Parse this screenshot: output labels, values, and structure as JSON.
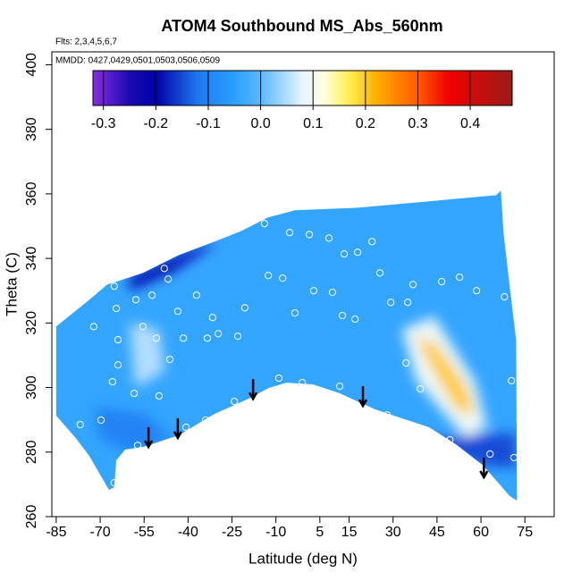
{
  "chart_data": {
    "type": "contour",
    "title": "ATOM4 Southbound MS_Abs_560nm",
    "flights_note": "Flts: 2,3,4,5,6,7",
    "dates_note": "MMDD: 0427,0429,0501,0503,0506,0509",
    "xlabel": "Latitude (deg N)",
    "ylabel": "Theta (C)",
    "xlim": [
      -86.5,
      85
    ],
    "ylim": [
      260,
      404
    ],
    "xticks": [
      -85,
      -70,
      -55,
      -40,
      -25,
      -10,
      5,
      15,
      30,
      45,
      60,
      75
    ],
    "yticks": [
      260,
      280,
      300,
      320,
      340,
      360,
      380,
      400
    ],
    "colorbar": {
      "lim": [
        -0.32,
        0.48
      ],
      "ticks": [
        -0.3,
        -0.2,
        -0.1,
        {
          "value": 0,
          "label": "0.0"
        },
        0.1,
        0.2,
        0.3,
        0.4
      ],
      "stops": [
        {
          "value": -0.32,
          "color": "#8a2be2"
        },
        {
          "value": -0.25,
          "color": "#1a0ab0"
        },
        {
          "value": -0.2,
          "color": "#0000a8"
        },
        {
          "value": -0.12,
          "color": "#1e78f0"
        },
        {
          "value": -0.05,
          "color": "#2aa0ff"
        },
        {
          "value": 0.0,
          "color": "#5ab8ff"
        },
        {
          "value": 0.08,
          "color": "#e6f4ff"
        },
        {
          "value": 0.12,
          "color": "#ffffe0"
        },
        {
          "value": 0.17,
          "color": "#ffee50"
        },
        {
          "value": 0.22,
          "color": "#ffb000"
        },
        {
          "value": 0.3,
          "color": "#ff5a00"
        },
        {
          "value": 0.36,
          "color": "#f00000"
        },
        {
          "value": 0.48,
          "color": "#9a1c1c"
        }
      ]
    },
    "field": {
      "base_value": -0.04,
      "boundary": {
        "lat": [
          -85,
          -73.7,
          -67.6,
          -55.4,
          -43.2,
          -31.0,
          -21.8,
          -12.7,
          -3.5,
          17.9,
          42.3,
          65.2,
          66.8,
          67.7,
          69.8,
          72.0,
          72.3,
          69.8,
          60.6,
          51.5,
          42.3,
          33.2,
          24.0,
          11.8,
          2.6,
          -6.5,
          -12.6,
          -18.7,
          -31.0,
          -43.2,
          -55.4,
          -61.5,
          -64.5,
          -65.2,
          -67.0,
          -73.7,
          -78.3,
          -85
        ],
        "theta": [
          318.9,
          327.2,
          331.9,
          335.5,
          341.0,
          345.2,
          348.5,
          352.7,
          354.9,
          355.7,
          357.7,
          359.6,
          361.0,
          348.0,
          331.4,
          314.8,
          265.0,
          266.4,
          276.0,
          282.4,
          287.7,
          290.4,
          293.2,
          298.2,
          301.0,
          301.5,
          299.8,
          296.8,
          291.8,
          285.2,
          281.6,
          280.8,
          277.4,
          269.1,
          268.3,
          278.8,
          284.3,
          291.3
        ]
      },
      "patches": [
        {
          "value": 0.09,
          "lat": [
            33,
            44,
            58,
            62,
            55,
            38
          ],
          "theta": [
            318,
            322,
            302,
            288,
            284,
            302
          ]
        },
        {
          "value": 0.2,
          "lat": [
            38,
            45,
            55,
            58,
            52,
            42
          ],
          "theta": [
            316,
            313,
            300,
            292,
            293,
            308
          ]
        },
        {
          "value": -0.2,
          "lat": [
            -60,
            -38,
            -30,
            -45,
            -60
          ],
          "theta": [
            334,
            343,
            345,
            336,
            330
          ]
        },
        {
          "value": -0.15,
          "lat": [
            38,
            72,
            72,
            60,
            45
          ],
          "theta": [
            284,
            286,
            275,
            276,
            281
          ]
        },
        {
          "value": 0.05,
          "lat": [
            -60,
            -50,
            -48,
            -58
          ],
          "theta": [
            320,
            318,
            305,
            300
          ]
        },
        {
          "value": -0.1,
          "lat": [
            -72,
            -55,
            -45,
            -60,
            -70
          ],
          "theta": [
            294,
            292,
            284,
            280,
            284
          ]
        }
      ]
    },
    "points": {
      "color": "#ffffff",
      "lat": [
        -13.9,
        -5.3,
        1.4,
        8.1,
        13.3,
        17.9,
        22.8,
        -12.6,
        -7.7,
        -3.5,
        2.9,
        9.3,
        12.7,
        17.0,
        25.5,
        29.2,
        36.8,
        46.6,
        52.7,
        58.5,
        68.0,
        35.0,
        34.4,
        39.3,
        28.0,
        36.2,
        49.4,
        63.1,
        71.3,
        70.4,
        -20.6,
        -23.0,
        -31.6,
        -29.7,
        -37.1,
        -43.5,
        -46.8,
        -48.1,
        -52.3,
        -57.8,
        -65.2,
        -64.5,
        -63.9,
        -63.9,
        -65.8,
        -58.4,
        -49.9,
        -55.4,
        -50.8,
        -41.6,
        -33.4,
        -46.2,
        -72.2,
        -76.8,
        -69.7,
        -57.2,
        -40.7,
        -34.0,
        -63.0,
        -65.2,
        -1.0,
        11.8,
        -24.2,
        -9.0
      ],
      "theta": [
        350.8,
        348.0,
        347.4,
        346.3,
        341.4,
        341.9,
        345.2,
        334.7,
        333.9,
        323.1,
        330.0,
        329.5,
        322.3,
        321.2,
        335.5,
        326.4,
        331.9,
        332.8,
        334.2,
        330.0,
        328.1,
        326.4,
        307.6,
        299.6,
        291.5,
        287.1,
        283.8,
        279.4,
        278.3,
        302.1,
        324.7,
        315.9,
        321.7,
        316.7,
        328.6,
        323.6,
        333.6,
        336.9,
        328.6,
        327.2,
        331.4,
        324.5,
        314.8,
        307.0,
        301.8,
        298.2,
        297.4,
        318.9,
        315.3,
        315.3,
        315.3,
        308.7,
        318.9,
        288.5,
        289.9,
        282.1,
        287.7,
        289.9,
        275.5,
        270.5,
        301.5,
        300.4,
        295.7,
        302.9
      ]
    },
    "arrows": {
      "lat": [
        -53.5,
        -43.5,
        -17.8,
        19.7,
        61.0
      ],
      "theta": [
        281.6,
        284.4,
        296.5,
        294.3,
        272.2
      ]
    }
  }
}
